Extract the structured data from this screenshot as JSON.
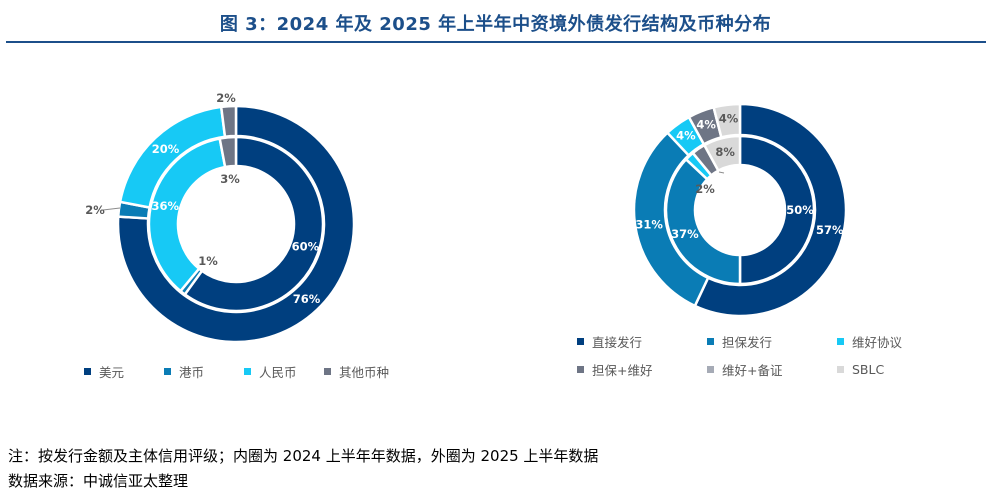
{
  "title": "图 3：2024 年及 2025 年上半年中资境外债发行结构及币种分布",
  "notes": {
    "note": "注：按发行金额及主体信用评级；内圈为 2024 上半年年数据，外圈为 2025 上半年数据",
    "source": "数据来源：中诚信亚太整理"
  },
  "chart_data": [
    {
      "type": "pie",
      "subtype": "double-donut",
      "categories": [
        "美元",
        "港币",
        "人民币",
        "其他币种"
      ],
      "colors": [
        "#003f7f",
        "#0a7cb5",
        "#17c9f5",
        "#6e7585"
      ],
      "series": [
        {
          "values": [
            76,
            2,
            20,
            2
          ],
          "labels": [
            "76%",
            "2%",
            "20%",
            "2%"
          ]
        },
        {
          "values": [
            60,
            1,
            36,
            3
          ],
          "labels": [
            "60%",
            "1%",
            "36%",
            "3%"
          ]
        }
      ],
      "legend_position": "bottom"
    },
    {
      "type": "pie",
      "subtype": "double-donut",
      "categories": [
        "直接发行",
        "担保发行",
        "维好协议",
        "担保+维好",
        "维好+备证",
        "SBLC"
      ],
      "colors": [
        "#003f7f",
        "#0a7cb5",
        "#17c9f5",
        "#6e7585",
        "#a6abb6",
        "#d9d9d9"
      ],
      "series": [
        {
          "values": [
            57,
            31,
            4,
            4,
            0,
            4
          ],
          "labels": [
            "57%",
            "31%",
            "4%",
            "4%",
            "",
            "4%"
          ]
        },
        {
          "values": [
            50,
            37,
            2,
            3,
            0,
            8
          ],
          "labels": [
            "50%",
            "37%",
            "2%",
            "3%",
            "",
            "8%"
          ]
        }
      ],
      "legend_position": "bottom"
    }
  ]
}
